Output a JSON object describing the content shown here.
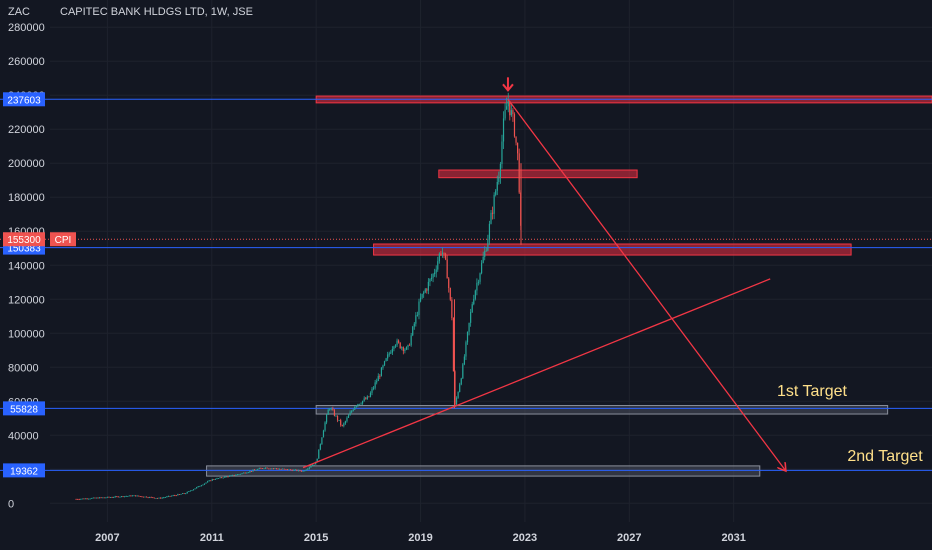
{
  "header": {
    "currency": "ZAC",
    "symbol": "CAPITEC BANK HLDGS LTD, 1W, JSE"
  },
  "colors": {
    "background": "#131722",
    "grid": "#1e222d",
    "up": "#26a69a",
    "down": "#ef5350",
    "axis_text": "#d1d4dc",
    "hline": "#2962ff",
    "hline_label": "#2962ff",
    "price_line": "#ef5350",
    "zone_red": "#b2283a",
    "zone_gray": "#4a4f5c",
    "trend": "#f23645",
    "annotation": "#ffe08a"
  },
  "chart_data": {
    "type": "candlestick",
    "title": "CAPITEC BANK HLDGS LTD, 1W, JSE",
    "y_unit": "ZAC",
    "xlim": [
      2004.8,
      2038.6
    ],
    "ylim": [
      -11000,
      296000
    ],
    "y_ticks": [
      0,
      20000,
      40000,
      60000,
      80000,
      100000,
      120000,
      140000,
      160000,
      180000,
      200000,
      220000,
      240000,
      260000,
      280000
    ],
    "y_tick_labels": [
      "0",
      "20000",
      "40000",
      "60000",
      "80000",
      "100000",
      "120000",
      "140000",
      "160000",
      "180000",
      "200000",
      "220000",
      "240000",
      "260000",
      "280000"
    ],
    "x_ticks": [
      2007,
      2011,
      2015,
      2019,
      2023,
      2027,
      2031
    ],
    "x_tick_labels": [
      "2007",
      "2011",
      "2015",
      "2019",
      "2023",
      "2027",
      "2031"
    ],
    "price_path": [
      [
        2005.8,
        2500
      ],
      [
        2007.0,
        3500
      ],
      [
        2008.0,
        4500
      ],
      [
        2009.0,
        3000
      ],
      [
        2010.0,
        6000
      ],
      [
        2011.0,
        14000
      ],
      [
        2012.0,
        17000
      ],
      [
        2013.0,
        21000
      ],
      [
        2014.5,
        19000
      ],
      [
        2015.0,
        24000
      ],
      [
        2015.3,
        45000
      ],
      [
        2015.5,
        57000
      ],
      [
        2016.0,
        45000
      ],
      [
        2016.5,
        58000
      ],
      [
        2017.0,
        62000
      ],
      [
        2017.5,
        78000
      ],
      [
        2018.0,
        95000
      ],
      [
        2018.5,
        90000
      ],
      [
        2019.0,
        120000
      ],
      [
        2019.5,
        135000
      ],
      [
        2019.8,
        150000
      ],
      [
        2020.0,
        138000
      ],
      [
        2020.2,
        110000
      ],
      [
        2020.3,
        56000
      ],
      [
        2020.6,
        78000
      ],
      [
        2021.0,
        120000
      ],
      [
        2021.5,
        150000
      ],
      [
        2022.0,
        195000
      ],
      [
        2022.2,
        225000
      ],
      [
        2022.35,
        237603
      ],
      [
        2022.6,
        220000
      ],
      [
        2022.75,
        200000
      ],
      [
        2022.85,
        155300
      ]
    ],
    "horizontal_levels": [
      {
        "value": 237603,
        "label": "237603"
      },
      {
        "value": 150383,
        "label": "150383"
      },
      {
        "value": 55828,
        "label": "55828"
      },
      {
        "value": 19362,
        "label": "19362"
      }
    ],
    "last_price": {
      "value": 155300,
      "label": "155300",
      "tag": "CPI"
    },
    "zones": [
      {
        "x0": 2015.0,
        "x1": 2038.6,
        "y0": 235500,
        "y1": 239500,
        "color": "red"
      },
      {
        "x0": 2019.7,
        "x1": 2027.3,
        "y0": 191500,
        "y1": 196000,
        "color": "red"
      },
      {
        "x0": 2017.2,
        "x1": 2035.5,
        "y0": 146000,
        "y1": 152500,
        "color": "red"
      },
      {
        "x0": 2015.0,
        "x1": 2036.9,
        "y0": 52500,
        "y1": 57500,
        "color": "gray"
      },
      {
        "x0": 2010.8,
        "x1": 2032.0,
        "y0": 16000,
        "y1": 22000,
        "color": "gray"
      }
    ],
    "trend_lines": [
      {
        "from": [
          2022.35,
          237603
        ],
        "to": [
          2033.0,
          19000
        ],
        "arrow": true
      },
      {
        "from": [
          2014.5,
          21000
        ],
        "to": [
          2032.4,
          132000
        ],
        "arrow": false
      }
    ],
    "markers": [
      {
        "x": 2022.35,
        "y": 247000,
        "direction": "down"
      }
    ],
    "annotations": [
      {
        "text": "1st Target",
        "x": 2034.0,
        "y": 63000
      },
      {
        "text": "2nd Target",
        "x": 2036.8,
        "y": 25000
      }
    ]
  }
}
